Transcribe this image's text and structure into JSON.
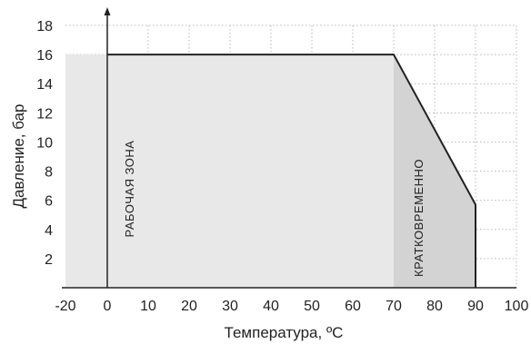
{
  "chart_data": {
    "type": "area",
    "xlabel": "Температура, ºС",
    "ylabel": "Давление, бар",
    "xlim": [
      -20,
      100
    ],
    "ylim": [
      0,
      18
    ],
    "x_ticks": [
      -20,
      0,
      10,
      20,
      30,
      40,
      50,
      60,
      70,
      80,
      90,
      100
    ],
    "y_ticks": [
      2,
      4,
      6,
      8,
      10,
      12,
      14,
      16,
      18
    ],
    "grid": true,
    "boundary": {
      "x": [
        0,
        70,
        90,
        90
      ],
      "y": [
        16,
        16,
        5.7,
        0
      ]
    },
    "regions": [
      {
        "label": "РАБОЧАЯ ЗОНА",
        "x_range": [
          -20,
          70
        ],
        "y_max": 16,
        "color": "#e8e8e8"
      },
      {
        "label": "КРАТКОВРЕМЕННО",
        "x_range": [
          70,
          90
        ],
        "y_top": [
          16,
          5.7
        ],
        "color": "#d3d3d3"
      }
    ],
    "colors": {
      "boundary": "#222222",
      "grid": "#b8b8b8",
      "axis": "#222222"
    }
  }
}
